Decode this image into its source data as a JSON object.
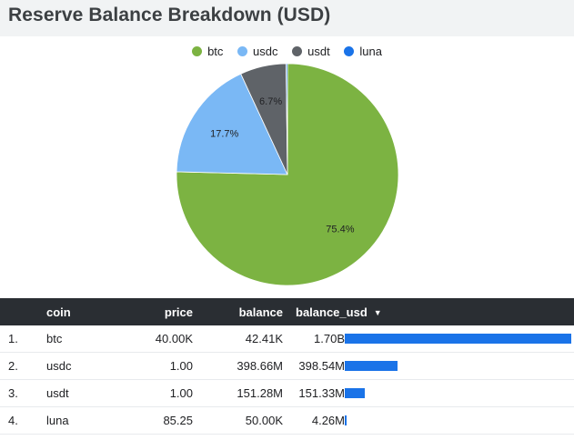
{
  "title": "Reserve Balance Breakdown (USD)",
  "legend": [
    {
      "label": "btc",
      "color": "#7cb342"
    },
    {
      "label": "usdc",
      "color": "#7ab8f5"
    },
    {
      "label": "usdt",
      "color": "#5f6368"
    },
    {
      "label": "luna",
      "color": "#1a73e8"
    }
  ],
  "chart_data": {
    "type": "pie",
    "slices": [
      {
        "name": "btc",
        "value": 75.4,
        "label": "75.4%",
        "color": "#7cb342"
      },
      {
        "name": "usdc",
        "value": 17.7,
        "label": "17.7%",
        "color": "#7ab8f5"
      },
      {
        "name": "usdt",
        "value": 6.7,
        "label": "6.7%",
        "color": "#5f6368"
      },
      {
        "name": "luna",
        "value": 0.2,
        "label": "",
        "color": "#1a73e8"
      }
    ]
  },
  "table": {
    "headers": {
      "coin": "coin",
      "price": "price",
      "balance": "balance",
      "balance_usd": "balance_usd",
      "sort_icon": "▼"
    },
    "bar_color": "#1a73e8",
    "rows": [
      {
        "index": "1.",
        "coin": "btc",
        "price": "40.00K",
        "balance": "42.41K",
        "balance_usd": "1.70B",
        "bar_fraction": 1.0
      },
      {
        "index": "2.",
        "coin": "usdc",
        "price": "1.00",
        "balance": "398.66M",
        "balance_usd": "398.54M",
        "bar_fraction": 0.234
      },
      {
        "index": "3.",
        "coin": "usdt",
        "price": "1.00",
        "balance": "151.28M",
        "balance_usd": "151.33M",
        "bar_fraction": 0.089
      },
      {
        "index": "4.",
        "coin": "luna",
        "price": "85.25",
        "balance": "50.00K",
        "balance_usd": "4.26M",
        "bar_fraction": 0.0025
      }
    ]
  }
}
